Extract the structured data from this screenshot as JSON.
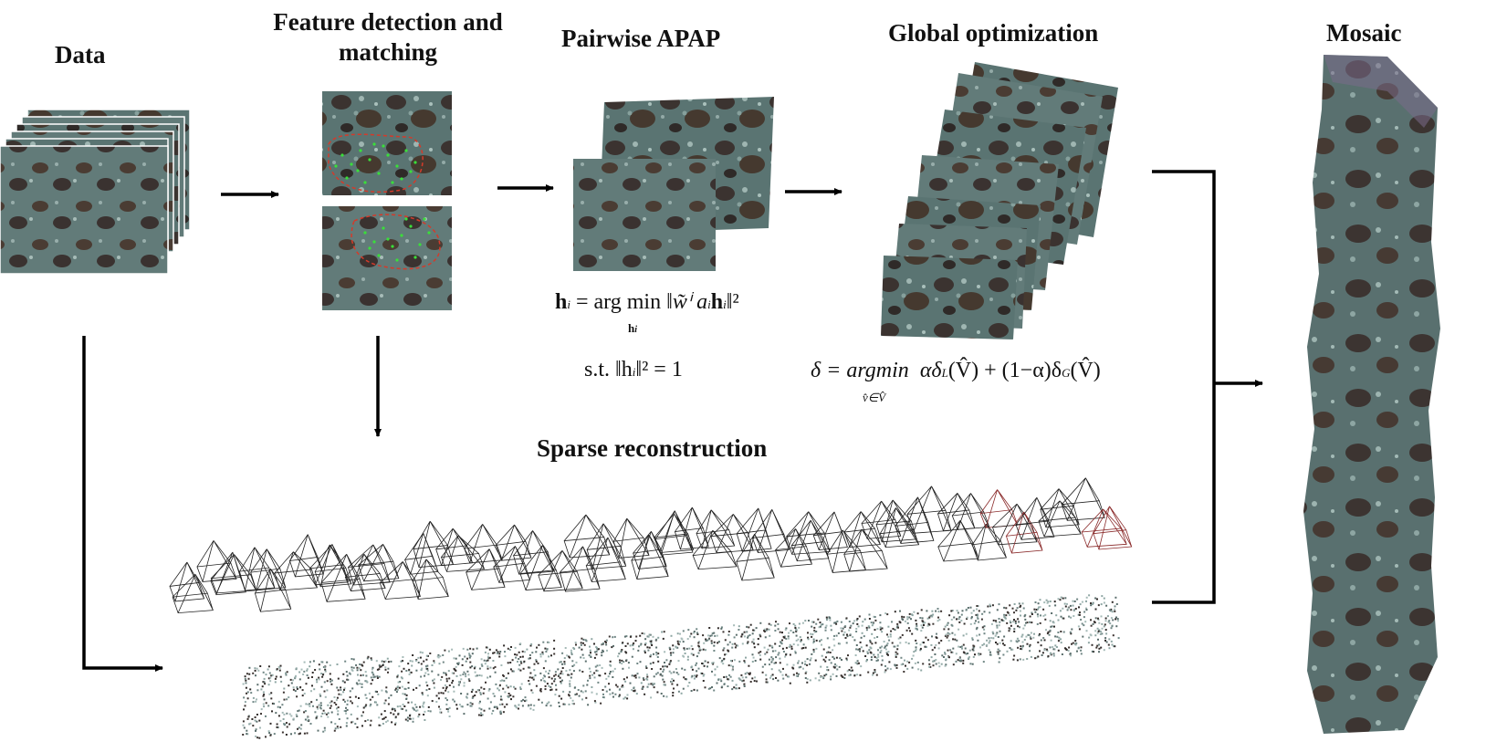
{
  "stages": {
    "data": "Data",
    "feature": "Feature detection and matching",
    "apap": "Pairwise APAP",
    "global": "Global optimization",
    "mosaic": "Mosaic",
    "sparse": "Sparse reconstruction"
  },
  "formulas": {
    "apap_line1_lhs": "h",
    "apap_line1_sub": "i",
    "apap_line1_op": " = arg min ",
    "apap_line1_under": "h",
    "apap_line1_body": "‖w̃ⁱ a",
    "apap_line1_body2": "h",
    "apap_line1_end": "‖²",
    "apap_line2": "s.t.  ‖h",
    "apap_line2_end": "‖² = 1",
    "global_delta": "δ = argmin",
    "global_under": "v̂∈V̂",
    "global_body": "αδ",
    "global_sub_l": "L",
    "global_mid": "(V̂) + (1−α)δ",
    "global_sub_g": "G",
    "global_end": "(V̂)"
  },
  "colors": {
    "seabed_base": "#4e6a6a",
    "seabed_dark": "#3a3230",
    "seabed_light": "#8fa8a6",
    "match_red": "#d43a2a",
    "match_green": "#3adf3a",
    "arrow": "#000000"
  }
}
